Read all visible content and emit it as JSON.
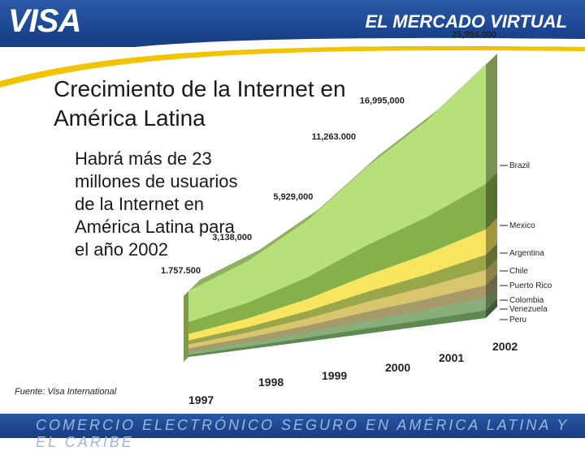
{
  "header": {
    "brand": "VISA",
    "title": "EL MERCADO VIRTUAL"
  },
  "slide": {
    "title_line1": "Crecimiento de la Internet en",
    "title_line2": "América Latina",
    "subtitle_lines": [
      "Habrá más de 23",
      "millones de usuarios",
      "de la Internet en",
      "América Latina para",
      "el año 2002"
    ],
    "source": "Fuente: Visa International"
  },
  "footer": {
    "tagline": "COMERCIO ELECTRÓNICO SEGURO EN AMÉRICA LATINA Y EL CARIBE"
  },
  "colors": {
    "header_blue": "#1d4793",
    "swoosh_yellow": "#f2c400"
  },
  "chart_data": {
    "type": "area",
    "title": "Crecimiento de la Internet en América Latina",
    "x": [
      "1997",
      "1998",
      "1999",
      "2000",
      "2001",
      "2002"
    ],
    "totals": [
      1757500,
      3138000,
      5929000,
      11263000,
      16995000,
      25994000
    ],
    "total_labels": [
      "1.757.500",
      "3,138,000",
      "5,929,000",
      "11,263.000",
      "16,995,000",
      "25,994.000"
    ],
    "stacking": "stacked",
    "series": [
      {
        "name": "Peru",
        "share": 0.03,
        "color": "#5e8a52"
      },
      {
        "name": "Venezuela",
        "share": 0.05,
        "color": "#8aae7a"
      },
      {
        "name": "Colombia",
        "share": 0.05,
        "color": "#a69a6a"
      },
      {
        "name": "Puerto Rico",
        "share": 0.06,
        "color": "#d8c66e"
      },
      {
        "name": "Chile",
        "share": 0.06,
        "color": "#9aa64a"
      },
      {
        "name": "Argentina",
        "share": 0.1,
        "color": "#f7e560"
      },
      {
        "name": "Mexico",
        "share": 0.18,
        "color": "#86b04a"
      },
      {
        "name": "Brazil",
        "share": 0.47,
        "color": "#b8e07a"
      }
    ],
    "legend": [
      "Brazil",
      "Mexico",
      "Argentina",
      "Chile",
      "Puerto Rico",
      "Colombia",
      "Venezuela",
      "Peru"
    ],
    "legend_position": "right"
  }
}
